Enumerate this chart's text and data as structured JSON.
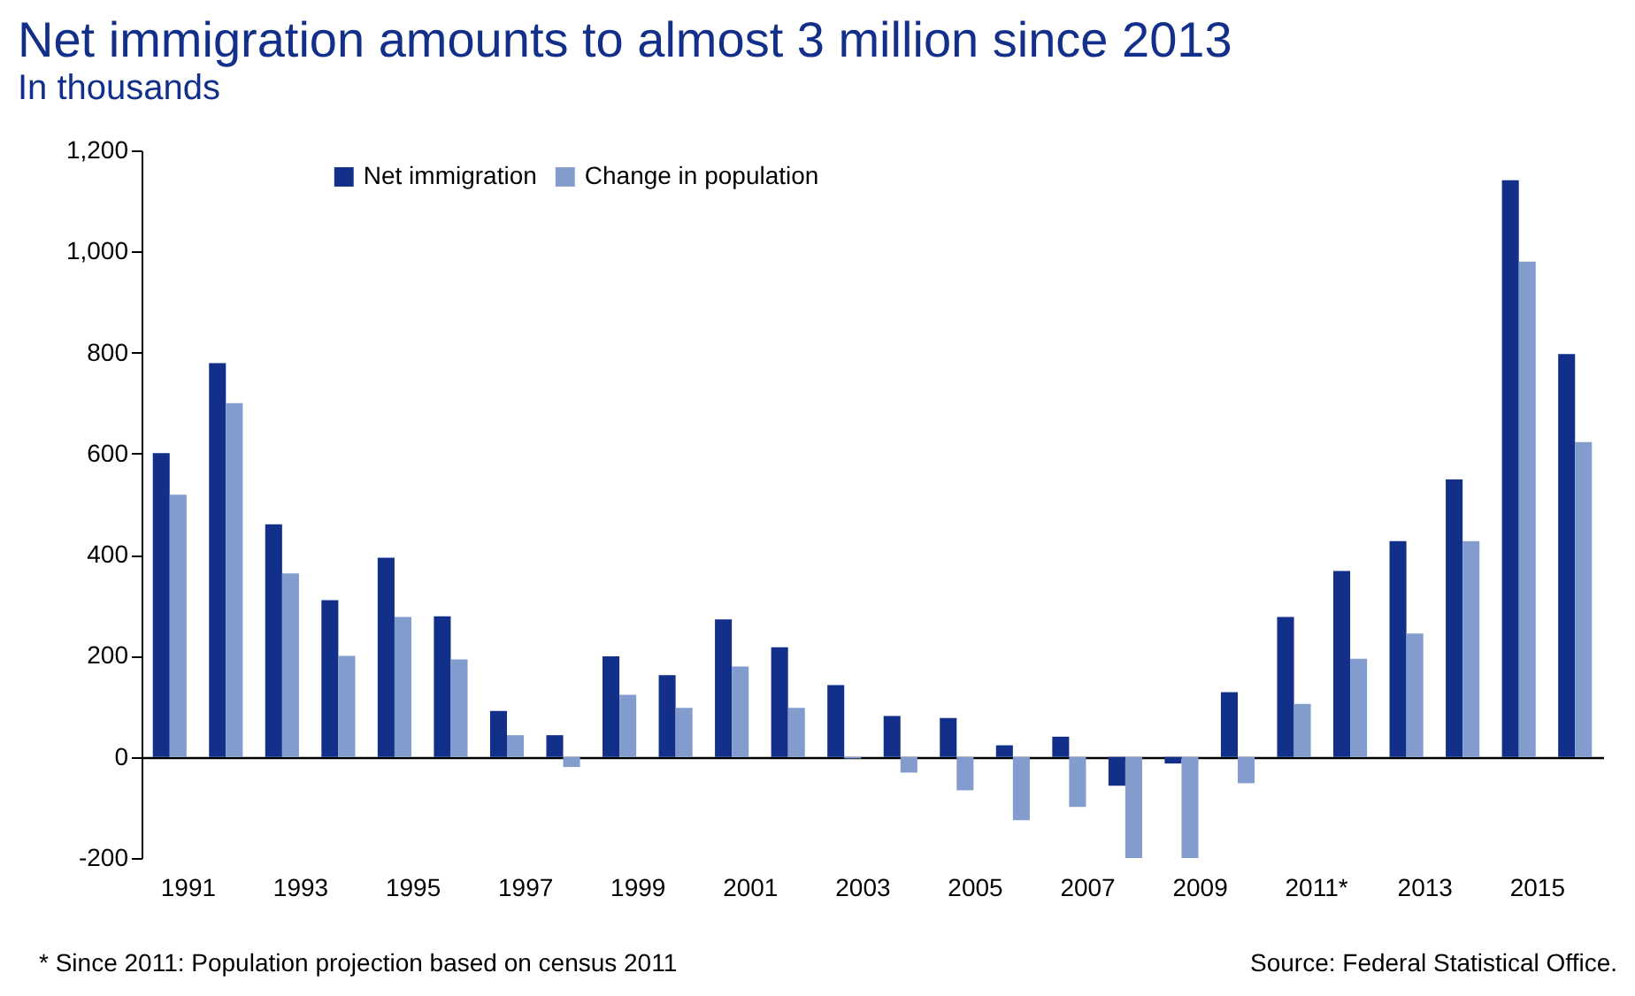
{
  "chart_data": {
    "type": "bar",
    "title": "Net immigration amounts to almost 3 million since 2013",
    "subtitle": "In thousands",
    "categories": [
      "1991",
      null,
      "1993",
      null,
      "1995",
      null,
      "1997",
      null,
      "1999",
      null,
      "2001",
      null,
      "2003",
      null,
      "2005",
      null,
      "2007",
      null,
      "2009",
      null,
      "2011*",
      null,
      "2013",
      null,
      "2015",
      null
    ],
    "series": [
      {
        "name": "Net immigration",
        "color": "#12308a",
        "values": [
          601,
          779,
          460,
          310,
          394,
          278,
          91,
          43,
          199,
          162,
          272,
          217,
          142,
          81,
          77,
          23,
          40,
          -57,
          -13,
          128,
          277,
          368,
          427,
          549,
          1141,
          797
        ]
      },
      {
        "name": "Change in population",
        "color": "#829cce",
        "values": [
          519,
          700,
          363,
          200,
          277,
          193,
          43,
          -20,
          123,
          97,
          179,
          97,
          -3,
          -31,
          -66,
          -125,
          -99,
          -200,
          -200,
          -52,
          105,
          194,
          244,
          427,
          980,
          623
        ]
      }
    ],
    "ylim": [
      -200,
      1200
    ],
    "yticks": [
      {
        "value": -200,
        "label": "-200"
      },
      0,
      200,
      400,
      600,
      800,
      {
        "value": 1000,
        "label": "1,000"
      },
      {
        "value": 1200,
        "label": "1,200"
      }
    ],
    "legend": "top",
    "annotations": [
      "* Since 2011: Population projection based on census 2011",
      "Source: Federal Statistical Office."
    ]
  }
}
